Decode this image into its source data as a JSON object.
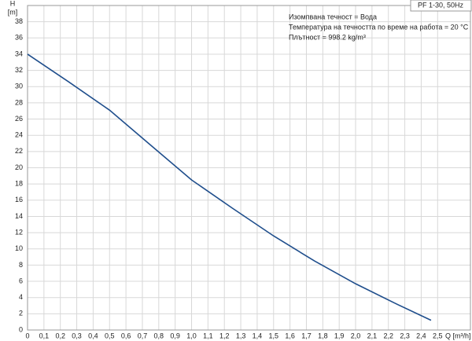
{
  "chart_data": {
    "type": "line",
    "title": "PF 1-30, 50Hz",
    "annotations": [
      "Изомпвана течност = Вода",
      "Температура на течността по време на работа = 20 °C",
      "Плътност = 998.2 kg/m³"
    ],
    "y_label": "H",
    "y_unit": "[m]",
    "x_label": "Q [m³/h]",
    "x": [
      0,
      0.25,
      0.5,
      0.75,
      1.0,
      1.25,
      1.5,
      1.75,
      2.0,
      2.25,
      2.46
    ],
    "series": [
      {
        "name": "H",
        "color": "#1f4e8c",
        "values": [
          34,
          30.6,
          27.1,
          22.8,
          18.5,
          15.0,
          11.6,
          8.5,
          5.7,
          3.2,
          1.2
        ]
      }
    ],
    "xlim": [
      0,
      2.7
    ],
    "ylim": [
      0,
      40
    ],
    "xticks": [
      0,
      {
        "value": 0.1,
        "label": "0,1"
      },
      {
        "value": 0.2,
        "label": "0,2"
      },
      {
        "value": 0.3,
        "label": "0,3"
      },
      {
        "value": 0.4,
        "label": "0,4"
      },
      {
        "value": 0.5,
        "label": "0,5"
      },
      {
        "value": 0.6,
        "label": "0,6"
      },
      {
        "value": 0.7,
        "label": "0,7"
      },
      {
        "value": 0.8,
        "label": "0,8"
      },
      {
        "value": 0.9,
        "label": "0,9"
      },
      {
        "value": 1.0,
        "label": "1,0"
      },
      {
        "value": 1.1,
        "label": "1,1"
      },
      {
        "value": 1.2,
        "label": "1,2"
      },
      {
        "value": 1.3,
        "label": "1,3"
      },
      {
        "value": 1.4,
        "label": "1,4"
      },
      {
        "value": 1.5,
        "label": "1,5"
      },
      {
        "value": 1.6,
        "label": "1,6"
      },
      {
        "value": 1.7,
        "label": "1,7"
      },
      {
        "value": 1.8,
        "label": "1,8"
      },
      {
        "value": 1.9,
        "label": "1,9"
      },
      {
        "value": 2.0,
        "label": "2,0"
      },
      {
        "value": 2.1,
        "label": "2,1"
      },
      {
        "value": 2.2,
        "label": "2,2"
      },
      {
        "value": 2.3,
        "label": "2,3"
      },
      {
        "value": 2.4,
        "label": "2,4"
      },
      {
        "value": 2.5,
        "label": "2,5"
      }
    ],
    "yticks": [
      0,
      2,
      4,
      6,
      8,
      10,
      12,
      14,
      16,
      18,
      20,
      22,
      24,
      26,
      28,
      30,
      32,
      34,
      36,
      38
    ],
    "grid": true
  }
}
